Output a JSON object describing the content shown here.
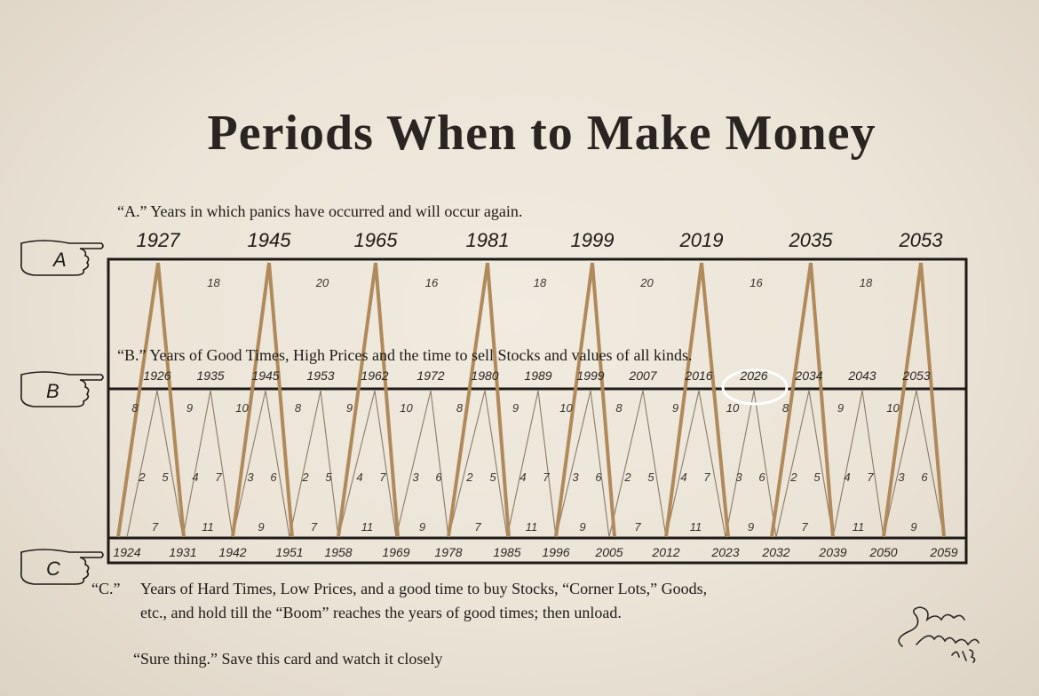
{
  "title": "Periods When to Make Money",
  "captions": {
    "a": "“A.” Years in which panics have occurred and will occur again.",
    "b": "“B.” Years of Good Times, High Prices and the time to sell Stocks and values of all kinds.",
    "c_label": "“C.”",
    "c_line1": "Years of Hard Times, Low Prices, and a good time to buy Stocks, “Corner Lots,” Goods,",
    "c_line2": "etc., and hold till  the “Boom” reaches the years of good times; then unload.",
    "sure": "“Sure thing.” Save this card and watch it closely"
  },
  "markers": {
    "a": "A",
    "b": "B",
    "c": "C"
  },
  "row_a": {
    "years": [
      "1927",
      "1945",
      "1965",
      "1981",
      "1999",
      "2019",
      "2035",
      "2053"
    ],
    "intervals": [
      "18",
      "20",
      "16",
      "18",
      "20",
      "16",
      "18"
    ]
  },
  "row_b": {
    "years": [
      "1926",
      "1935",
      "1945",
      "1953",
      "1962",
      "1972",
      "1980",
      "1989",
      "1999",
      "2007",
      "2016",
      "2026",
      "2034",
      "2043",
      "2053"
    ],
    "highlighted": "2026",
    "upper_intervals": [
      "8",
      "9",
      "10",
      "8",
      "9",
      "10",
      "8",
      "9",
      "10",
      "8",
      "9",
      "10",
      "8",
      "9",
      "10"
    ],
    "middle_pairs": [
      [
        "2",
        "5"
      ],
      [
        "4",
        "7"
      ],
      [
        "3",
        "6"
      ],
      [
        "2",
        "5"
      ],
      [
        "4",
        "7"
      ],
      [
        "3",
        "6"
      ],
      [
        "2",
        "5"
      ],
      [
        "4",
        "7"
      ],
      [
        "3",
        "6"
      ],
      [
        "2",
        "5"
      ],
      [
        "4",
        "7"
      ],
      [
        "3",
        "6"
      ],
      [
        "2",
        "5"
      ],
      [
        "4",
        "7"
      ],
      [
        "3",
        "6"
      ]
    ],
    "lower_intervals": [
      "7",
      "11",
      "9",
      "7",
      "11",
      "9",
      "7",
      "11",
      "9",
      "7",
      "11",
      "9",
      "7",
      "11",
      "9"
    ]
  },
  "row_c": {
    "years": [
      "1924",
      "1931",
      "1942",
      "1951",
      "1958",
      "1969",
      "1978",
      "1985",
      "1996",
      "2005",
      "2012",
      "2023",
      "2032",
      "2039",
      "2050",
      "2059"
    ]
  },
  "signature": {
    "name": "Samuel Benner",
    "year": "1875"
  },
  "colors": {
    "ink": "#1e1a17",
    "peak_line": "#b08a5a",
    "thin_line": "#8c7a66",
    "highlight_circle": "#ffffff",
    "paper": "#ece5d8"
  }
}
